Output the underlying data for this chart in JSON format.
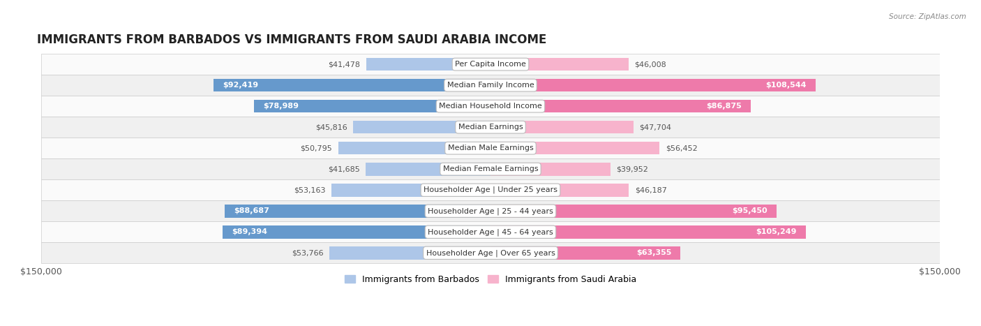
{
  "title": "IMMIGRANTS FROM BARBADOS VS IMMIGRANTS FROM SAUDI ARABIA INCOME",
  "source": "Source: ZipAtlas.com",
  "categories": [
    "Per Capita Income",
    "Median Family Income",
    "Median Household Income",
    "Median Earnings",
    "Median Male Earnings",
    "Median Female Earnings",
    "Householder Age | Under 25 years",
    "Householder Age | 25 - 44 years",
    "Householder Age | 45 - 64 years",
    "Householder Age | Over 65 years"
  ],
  "barbados_values": [
    41478,
    92419,
    78989,
    45816,
    50795,
    41685,
    53163,
    88687,
    89394,
    53766
  ],
  "saudi_values": [
    46008,
    108544,
    86875,
    47704,
    56452,
    39952,
    46187,
    95450,
    105249,
    63355
  ],
  "max_val": 150000,
  "barbados_color_light": "#adc6e8",
  "barbados_color_dark": "#6699cc",
  "saudi_color_light": "#f7b3cc",
  "saudi_color_dark": "#ee7aaa",
  "label_color_outside": "#555555",
  "label_color_inside": "#ffffff",
  "row_bg_even": "#f0f0f0",
  "row_bg_odd": "#e4e4e4",
  "row_bg_white": "#fafafa",
  "category_box_color": "#ffffff",
  "title_fontsize": 12,
  "label_fontsize": 8,
  "category_fontsize": 8,
  "legend_fontsize": 9,
  "axis_label_fontsize": 9,
  "dark_threshold": 60000
}
